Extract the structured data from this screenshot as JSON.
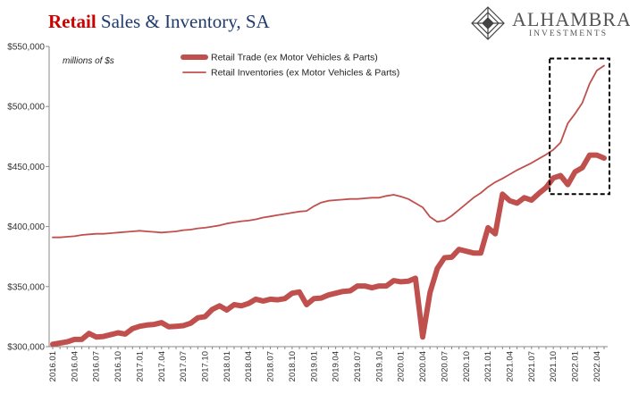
{
  "header": {
    "title_accent": "Retail",
    "title_rest": " Sales & Inventory, SA",
    "logo_word": "ALHAMBRA",
    "logo_sub": "INVESTMENTS"
  },
  "colors": {
    "series": "#c0504d",
    "axis": "#888888",
    "title_accent": "#cc0000",
    "title": "#1f3a6e"
  },
  "chart_data": {
    "type": "line",
    "title": "Retail Sales & Inventory, SA",
    "units_note": "millions of $s",
    "ylim": [
      300000,
      550000
    ],
    "y_ticks": [
      300000,
      350000,
      400000,
      450000,
      500000,
      550000
    ],
    "y_tick_labels": [
      "$300,000",
      "$350,000",
      "$400,000",
      "$450,000",
      "$500,000",
      "$550,000"
    ],
    "x_tick_labels": [
      "2016.01",
      "2016.04",
      "2016.07",
      "2016.10",
      "2017.01",
      "2017.04",
      "2017.07",
      "2017.10",
      "2018.01",
      "2018.04",
      "2018.07",
      "2018.10",
      "2019.01",
      "2019.04",
      "2019.07",
      "2019.10",
      "2020.01",
      "2020.04",
      "2020.07",
      "2020.10",
      "2021.01",
      "2021.04",
      "2021.07",
      "2021.10",
      "2022.01",
      "2022.04"
    ],
    "grid": false,
    "legend_position": "top",
    "annotation": "dashed box highlighting 2021.10 to 2022.05",
    "annotation_range": {
      "x": [
        "2021.10",
        "2022.05"
      ],
      "y": [
        427000,
        540000
      ]
    },
    "x": [
      "2016.01",
      "2016.02",
      "2016.03",
      "2016.04",
      "2016.05",
      "2016.06",
      "2016.07",
      "2016.08",
      "2016.09",
      "2016.10",
      "2016.11",
      "2016.12",
      "2017.01",
      "2017.02",
      "2017.03",
      "2017.04",
      "2017.05",
      "2017.06",
      "2017.07",
      "2017.08",
      "2017.09",
      "2017.10",
      "2017.11",
      "2017.12",
      "2018.01",
      "2018.02",
      "2018.03",
      "2018.04",
      "2018.05",
      "2018.06",
      "2018.07",
      "2018.08",
      "2018.09",
      "2018.10",
      "2018.11",
      "2018.12",
      "2019.01",
      "2019.02",
      "2019.03",
      "2019.04",
      "2019.05",
      "2019.06",
      "2019.07",
      "2019.08",
      "2019.09",
      "2019.10",
      "2019.11",
      "2019.12",
      "2020.01",
      "2020.02",
      "2020.03",
      "2020.04",
      "2020.05",
      "2020.06",
      "2020.07",
      "2020.08",
      "2020.09",
      "2020.10",
      "2020.11",
      "2020.12",
      "2021.01",
      "2021.02",
      "2021.03",
      "2021.04",
      "2021.05",
      "2021.06",
      "2021.07",
      "2021.08",
      "2021.09",
      "2021.10",
      "2021.11",
      "2021.12",
      "2022.01",
      "2022.02",
      "2022.03",
      "2022.04",
      "2022.05"
    ],
    "series": [
      {
        "name": "Retail Trade (ex Motor Vehicles & Parts)",
        "line_weight": "thick",
        "values": [
          302000,
          303000,
          304000,
          306000,
          306000,
          311000,
          308000,
          308500,
          310000,
          311500,
          310500,
          315000,
          317000,
          318000,
          318500,
          320000,
          316500,
          317000,
          317500,
          319500,
          324000,
          325000,
          331000,
          334000,
          330500,
          335000,
          334000,
          336000,
          339500,
          338000,
          339500,
          339000,
          340000,
          344500,
          345500,
          335000,
          340000,
          340500,
          343000,
          344500,
          346000,
          346500,
          350500,
          350500,
          349000,
          350500,
          350500,
          355000,
          354000,
          354500,
          357000,
          308000,
          345000,
          365000,
          374000,
          374500,
          381000,
          379500,
          378000,
          378000,
          399000,
          394000,
          427000,
          421500,
          419500,
          424000,
          422000,
          427500,
          432500,
          440500,
          442500,
          435000,
          445500,
          449000,
          459500,
          459500,
          457000
        ]
      },
      {
        "name": "Retail Inventories (ex Motor Vehicles & Parts)",
        "line_weight": "thin",
        "values": [
          391000,
          391000,
          391500,
          392000,
          393000,
          393500,
          394000,
          394000,
          394500,
          395000,
          395500,
          396000,
          396500,
          396000,
          395500,
          395000,
          395500,
          396000,
          397000,
          397500,
          398500,
          399000,
          400000,
          401000,
          402500,
          403500,
          404500,
          405000,
          406000,
          407500,
          408500,
          409500,
          410500,
          411500,
          412500,
          413000,
          417000,
          420000,
          421500,
          422000,
          422500,
          423000,
          423000,
          423500,
          424000,
          424000,
          425500,
          426500,
          425000,
          423000,
          419500,
          416000,
          408000,
          404000,
          405000,
          409000,
          414000,
          419000,
          424000,
          428000,
          433000,
          437000,
          440000,
          443500,
          447000,
          450000,
          453000,
          456500,
          460000,
          464000,
          470000,
          486000,
          494000,
          503000,
          519000,
          530000,
          534000
        ]
      }
    ]
  }
}
